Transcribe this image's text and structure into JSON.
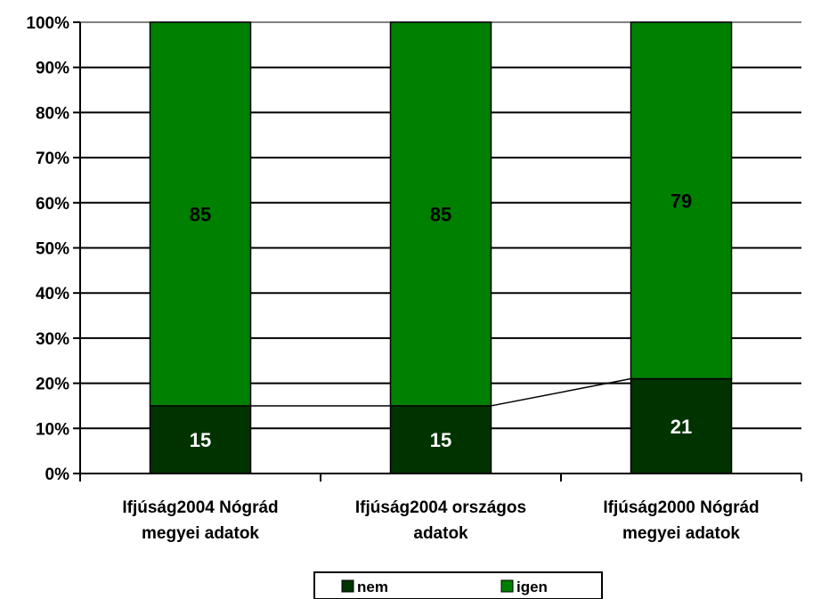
{
  "chart_data": {
    "type": "bar",
    "stacked": true,
    "percent": true,
    "categories": [
      [
        "Ifjúság2004 Nógrád",
        "megyei adatok"
      ],
      [
        "Ifjúság2004 országos",
        "adatok"
      ],
      [
        "Ifjúság2000 Nógrád",
        "megyei adatok"
      ]
    ],
    "series": [
      {
        "name": "nem",
        "color": "#003300",
        "label_color": "#ffffff",
        "values": [
          15,
          15,
          21
        ]
      },
      {
        "name": "igen",
        "color": "#008000",
        "label_color": "#000000",
        "values": [
          85,
          85,
          79
        ]
      }
    ],
    "ylim": [
      0,
      100
    ],
    "yticks": [
      "0%",
      "10%",
      "20%",
      "30%",
      "40%",
      "50%",
      "60%",
      "70%",
      "80%",
      "90%",
      "100%"
    ],
    "grid": true,
    "series_lines": true,
    "legend": {
      "position": "bottom",
      "items": [
        "nem",
        "igen"
      ]
    }
  }
}
